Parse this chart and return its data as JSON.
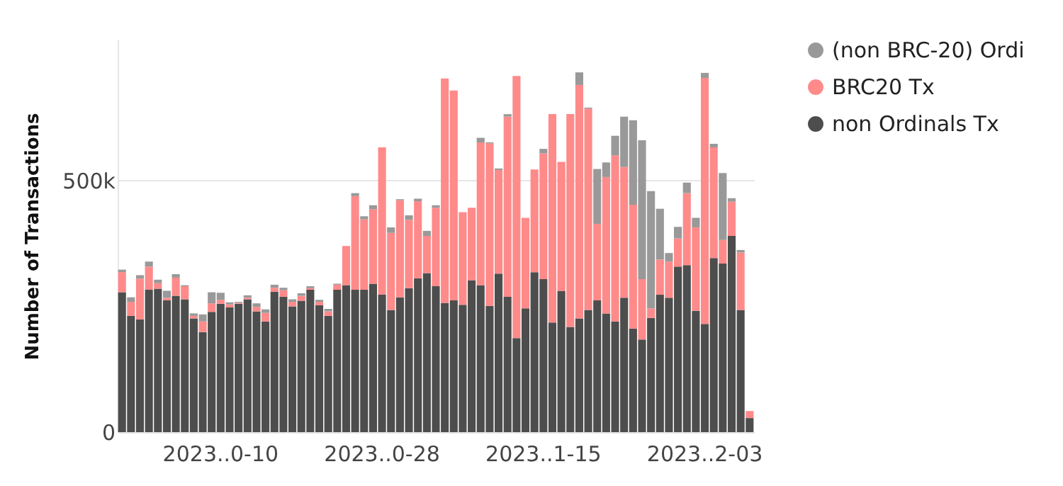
{
  "chart_data": {
    "type": "bar",
    "stacked": true,
    "ylabel": "Number of Transactions",
    "categories": [
      null,
      null,
      null,
      null,
      null,
      null,
      null,
      null,
      null,
      null,
      null,
      "2023..0-10",
      null,
      null,
      null,
      null,
      null,
      null,
      null,
      null,
      null,
      null,
      null,
      null,
      null,
      null,
      null,
      null,
      null,
      "2023..0-28",
      null,
      null,
      null,
      null,
      null,
      null,
      null,
      null,
      null,
      null,
      null,
      null,
      null,
      null,
      null,
      null,
      null,
      "2023..1-15",
      null,
      null,
      null,
      null,
      null,
      null,
      null,
      null,
      null,
      null,
      null,
      null,
      null,
      null,
      null,
      null,
      null,
      "2023..2-03",
      null,
      null,
      null,
      null,
      null
    ],
    "series": [
      {
        "name": "non Ordinals Tx",
        "color": "#4d4d4d",
        "values": [
          278000,
          231000,
          224000,
          283000,
          285000,
          262000,
          271000,
          264000,
          226000,
          199000,
          239000,
          255000,
          248000,
          255000,
          264000,
          240000,
          220000,
          279000,
          269000,
          250000,
          261000,
          283000,
          252000,
          231000,
          283000,
          292000,
          283000,
          283000,
          295000,
          273000,
          243000,
          268000,
          286000,
          306000,
          316000,
          290000,
          257000,
          262000,
          253000,
          302000,
          292000,
          251000,
          315000,
          269000,
          187000,
          246000,
          318000,
          304000,
          218000,
          281000,
          209000,
          226000,
          243000,
          262000,
          236000,
          220000,
          267000,
          206000,
          184000,
          227000,
          273000,
          267000,
          329000,
          332000,
          241000,
          215000,
          346000,
          335000,
          390000,
          243000,
          28000
        ]
      },
      {
        "name": "BRC20 Tx",
        "color": "#ff8a8a",
        "values": [
          40000,
          28000,
          81000,
          46000,
          11000,
          5000,
          36000,
          26000,
          5000,
          21000,
          17000,
          8000,
          6000,
          2000,
          3000,
          9000,
          17000,
          8000,
          13000,
          9000,
          10000,
          3000,
          7000,
          9000,
          10000,
          78000,
          186000,
          140000,
          148000,
          293000,
          153000,
          193000,
          136000,
          153000,
          74000,
          156000,
          446000,
          417000,
          184000,
          144000,
          284000,
          323000,
          206000,
          358000,
          521000,
          180000,
          204000,
          250000,
          414000,
          256000,
          423000,
          464000,
          400000,
          152000,
          271000,
          330000,
          260000,
          246000,
          120000,
          19000,
          70000,
          72000,
          56000,
          143000,
          166000,
          489000,
          220000,
          47000,
          68000,
          114000,
          14000
        ]
      },
      {
        "name": "(non BRC-20) Ordi",
        "color": "#999999",
        "values": [
          5000,
          9000,
          7000,
          10000,
          7000,
          14000,
          7000,
          2000,
          5000,
          14000,
          22000,
          14000,
          4000,
          2000,
          5000,
          7000,
          7000,
          6000,
          5000,
          5000,
          5000,
          4000,
          4000,
          5000,
          2000,
          0,
          6000,
          6000,
          8000,
          0,
          11000,
          2000,
          9000,
          5000,
          10000,
          5000,
          0,
          0,
          0,
          0,
          9000,
          2000,
          3000,
          5000,
          0,
          0,
          0,
          9000,
          0,
          0,
          0,
          25000,
          2000,
          109000,
          29000,
          39000,
          100000,
          168000,
          276000,
          233000,
          101000,
          17000,
          23000,
          21000,
          19000,
          10000,
          7000,
          133000,
          7000,
          5000,
          0
        ]
      }
    ],
    "ylim": [
      0,
      780000
    ],
    "yticks": [
      0,
      {
        "value": 500000,
        "label": "500k"
      }
    ],
    "grid": "y",
    "legend": "right"
  }
}
